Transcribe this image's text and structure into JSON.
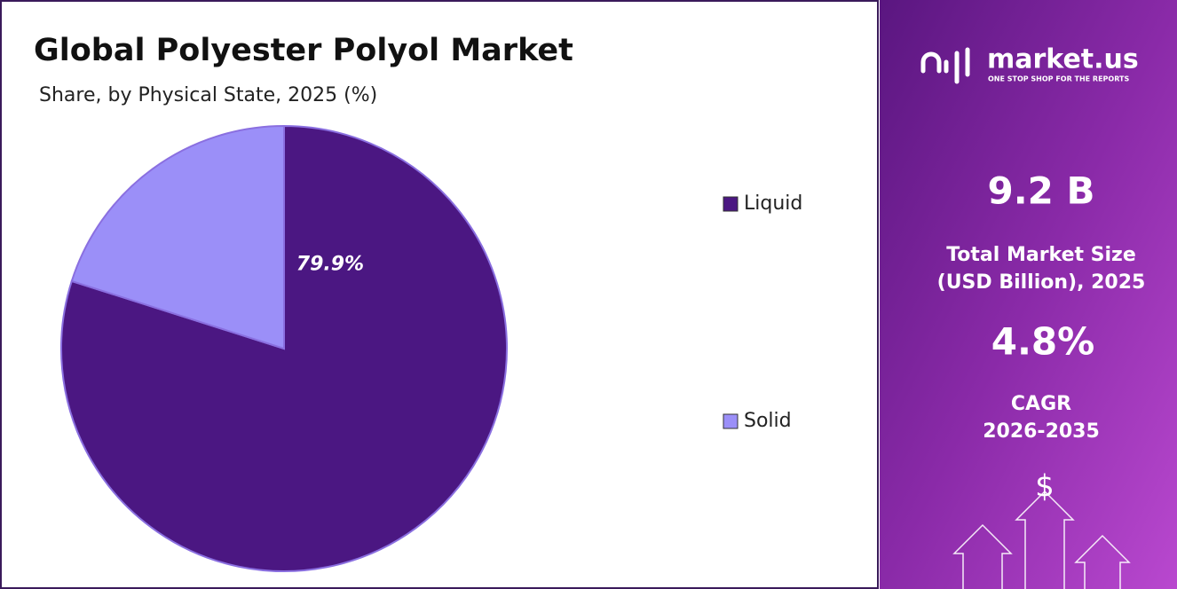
{
  "chart_data": {
    "type": "pie",
    "title": "Global Polyester Polyol Market",
    "subtitle": "Share, by Physical State, 2025 (%)",
    "categories": [
      "Liquid",
      "Solid"
    ],
    "values": [
      79.9,
      20.1
    ],
    "value_labels": [
      "79.9%",
      null
    ],
    "colors": [
      "#4b1782",
      "#9b8ff8"
    ],
    "legend": "right"
  },
  "panel": {
    "brand": "market.us",
    "tagline": "ONE STOP SHOP FOR THE REPORTS",
    "market_size": "9.2 B",
    "market_size_label": [
      "Total Market Size",
      "(USD Billion), 2025"
    ],
    "cagr": "4.8%",
    "cagr_label": [
      "CAGR",
      "2026-2035"
    ],
    "symbol": "$"
  }
}
